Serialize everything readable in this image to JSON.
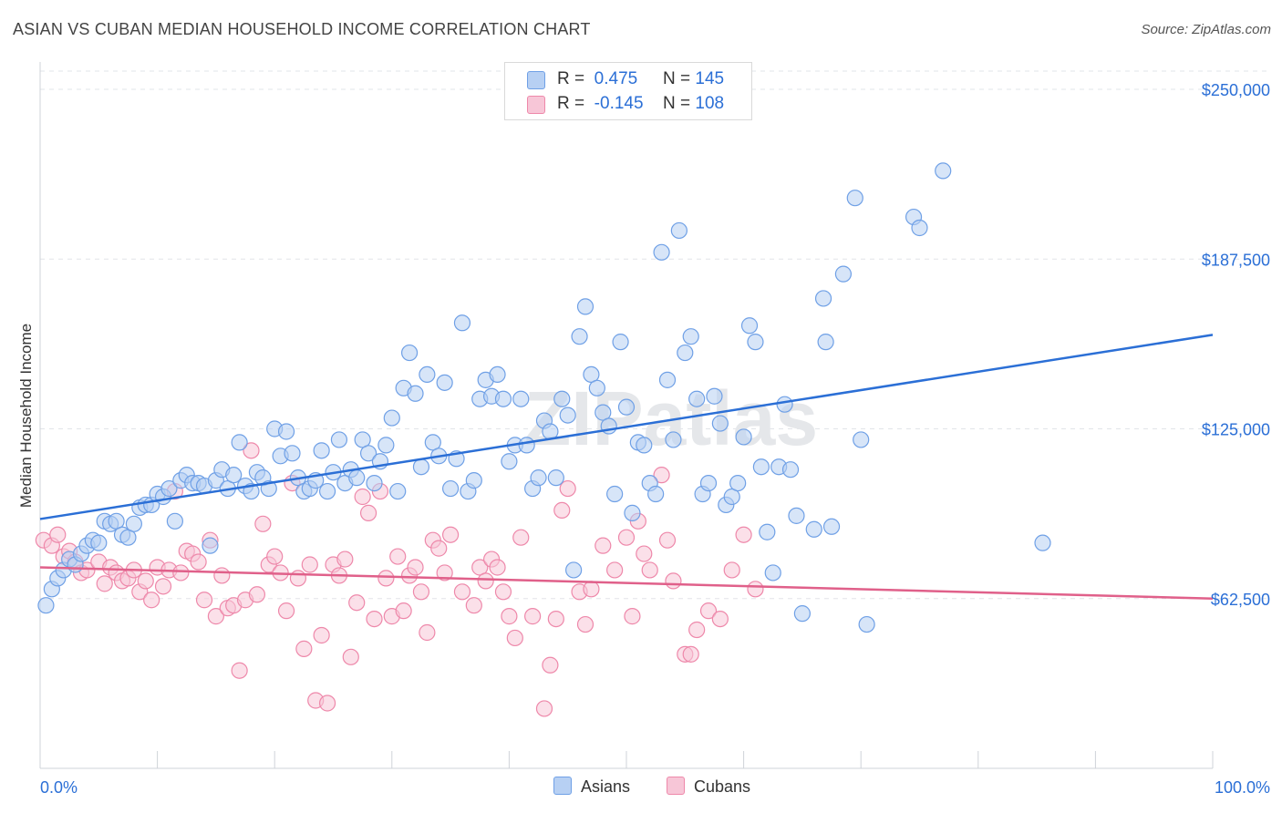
{
  "title": "ASIAN VS CUBAN MEDIAN HOUSEHOLD INCOME CORRELATION CHART",
  "source": "Source: ZipAtlas.com",
  "watermark": "ZIPatlas",
  "legend": {
    "rows": [
      {
        "r_label": "R =",
        "r_value": "0.475",
        "n_label": "N =",
        "n_value": "145"
      },
      {
        "r_label": "R =",
        "r_value": "-0.145",
        "n_label": "N =",
        "n_value": "108"
      }
    ]
  },
  "bottom_legend": [
    "Asians",
    "Cubans"
  ],
  "colors": {
    "asian": "#6fa0e6",
    "asian_fill": "#b7d0f3",
    "cuban": "#ee88aa",
    "cuban_fill": "#f7c6d7",
    "asian_line": "#2b6fd6",
    "cuban_line": "#e0608a",
    "axis_text": "#2b6fd6"
  },
  "chart_data": {
    "type": "scatter",
    "title": "ASIAN VS CUBAN MEDIAN HOUSEHOLD INCOME CORRELATION CHART",
    "xlabel": "",
    "ylabel": "Median Household Income",
    "xlim": [
      0,
      100
    ],
    "ylim": [
      0,
      250000
    ],
    "x_tick_labels": [
      "0.0%",
      "100.0%"
    ],
    "y_ticks": [
      62500,
      125000,
      187500,
      250000
    ],
    "y_tick_labels": [
      "$62,500",
      "$125,000",
      "$187,500",
      "$250,000"
    ],
    "grid": true,
    "legend_position": "top-center",
    "series": [
      {
        "name": "Asians",
        "r": 0.475,
        "n": 145,
        "trend": [
          [
            0,
            91800
          ],
          [
            100,
            159600
          ]
        ],
        "points": [
          [
            0.5,
            60000
          ],
          [
            1,
            66000
          ],
          [
            1.5,
            70000
          ],
          [
            2,
            73000
          ],
          [
            2.5,
            77000
          ],
          [
            3,
            75000
          ],
          [
            3.5,
            79000
          ],
          [
            4,
            82000
          ],
          [
            4.5,
            84000
          ],
          [
            5,
            83000
          ],
          [
            5.5,
            91000
          ],
          [
            6,
            90000
          ],
          [
            6.5,
            91000
          ],
          [
            7,
            86000
          ],
          [
            7.5,
            85000
          ],
          [
            8,
            90000
          ],
          [
            8.5,
            96000
          ],
          [
            9,
            97000
          ],
          [
            9.5,
            97000
          ],
          [
            10,
            101000
          ],
          [
            10.5,
            100000
          ],
          [
            11,
            103000
          ],
          [
            11.5,
            91000
          ],
          [
            12,
            106000
          ],
          [
            12.5,
            108000
          ],
          [
            13,
            105000
          ],
          [
            13.5,
            105000
          ],
          [
            14,
            104000
          ],
          [
            14.5,
            82000
          ],
          [
            15,
            106000
          ],
          [
            15.5,
            110000
          ],
          [
            16,
            103000
          ],
          [
            16.5,
            108000
          ],
          [
            17,
            120000
          ],
          [
            17.5,
            104000
          ],
          [
            18,
            102000
          ],
          [
            18.5,
            109000
          ],
          [
            19,
            107000
          ],
          [
            19.5,
            103000
          ],
          [
            20,
            125000
          ],
          [
            20.5,
            115000
          ],
          [
            21,
            124000
          ],
          [
            21.5,
            116000
          ],
          [
            22,
            107000
          ],
          [
            22.5,
            102000
          ],
          [
            23,
            103000
          ],
          [
            23.5,
            106000
          ],
          [
            24,
            117000
          ],
          [
            24.5,
            102000
          ],
          [
            25,
            109000
          ],
          [
            25.5,
            121000
          ],
          [
            26,
            105000
          ],
          [
            26.5,
            110000
          ],
          [
            27,
            107000
          ],
          [
            27.5,
            121000
          ],
          [
            28,
            116000
          ],
          [
            28.5,
            105000
          ],
          [
            29,
            113000
          ],
          [
            29.5,
            119000
          ],
          [
            30,
            129000
          ],
          [
            30.5,
            102000
          ],
          [
            31,
            140000
          ],
          [
            31.5,
            153000
          ],
          [
            32,
            138000
          ],
          [
            32.5,
            111000
          ],
          [
            33,
            145000
          ],
          [
            33.5,
            120000
          ],
          [
            34,
            115000
          ],
          [
            34.5,
            142000
          ],
          [
            35,
            103000
          ],
          [
            35.5,
            114000
          ],
          [
            36,
            164000
          ],
          [
            36.5,
            102000
          ],
          [
            37,
            106000
          ],
          [
            37.5,
            136000
          ],
          [
            38,
            143000
          ],
          [
            38.5,
            137000
          ],
          [
            39,
            145000
          ],
          [
            39.5,
            136000
          ],
          [
            40,
            113000
          ],
          [
            40.5,
            119000
          ],
          [
            41,
            136000
          ],
          [
            41.5,
            119000
          ],
          [
            42,
            103000
          ],
          [
            42.5,
            107000
          ],
          [
            43,
            128000
          ],
          [
            43.5,
            124000
          ],
          [
            44,
            107000
          ],
          [
            44.5,
            136000
          ],
          [
            45,
            130000
          ],
          [
            45.5,
            73000
          ],
          [
            46,
            159000
          ],
          [
            46.5,
            170000
          ],
          [
            47,
            145000
          ],
          [
            47.5,
            140000
          ],
          [
            48,
            131000
          ],
          [
            48.5,
            126000
          ],
          [
            49,
            101000
          ],
          [
            49.5,
            157000
          ],
          [
            50,
            133000
          ],
          [
            50.5,
            94000
          ],
          [
            51,
            120000
          ],
          [
            51.5,
            119000
          ],
          [
            52,
            105000
          ],
          [
            52.5,
            101000
          ],
          [
            53,
            190000
          ],
          [
            53.5,
            143000
          ],
          [
            54,
            121000
          ],
          [
            54.5,
            198000
          ],
          [
            55,
            153000
          ],
          [
            55.5,
            159000
          ],
          [
            56,
            136000
          ],
          [
            56.5,
            101000
          ],
          [
            57,
            105000
          ],
          [
            57.5,
            137000
          ],
          [
            58,
            127000
          ],
          [
            58.5,
            97000
          ],
          [
            59,
            100000
          ],
          [
            59.5,
            105000
          ],
          [
            60,
            122000
          ],
          [
            60.5,
            163000
          ],
          [
            61,
            157000
          ],
          [
            61.5,
            111000
          ],
          [
            62,
            87000
          ],
          [
            62.5,
            72000
          ],
          [
            63,
            111000
          ],
          [
            63.5,
            134000
          ],
          [
            64,
            110000
          ],
          [
            64.5,
            93000
          ],
          [
            65,
            57000
          ],
          [
            66,
            88000
          ],
          [
            66.8,
            173000
          ],
          [
            67,
            157000
          ],
          [
            67.5,
            89000
          ],
          [
            68.5,
            182000
          ],
          [
            69.5,
            210000
          ],
          [
            70,
            121000
          ],
          [
            70.5,
            53000
          ],
          [
            74.5,
            203000
          ],
          [
            75,
            199000
          ],
          [
            77,
            220000
          ],
          [
            85.5,
            83000
          ]
        ]
      },
      {
        "name": "Cubans",
        "r": -0.145,
        "n": 108,
        "trend": [
          [
            0,
            74000
          ],
          [
            100,
            62500
          ]
        ],
        "points": [
          [
            0.3,
            84000
          ],
          [
            1,
            82000
          ],
          [
            1.5,
            86000
          ],
          [
            2,
            78000
          ],
          [
            2.5,
            80000
          ],
          [
            3,
            76000
          ],
          [
            3.5,
            72000
          ],
          [
            4,
            73000
          ],
          [
            5,
            76000
          ],
          [
            5.5,
            68000
          ],
          [
            6,
            74000
          ],
          [
            6.5,
            72000
          ],
          [
            7,
            69000
          ],
          [
            7.5,
            70000
          ],
          [
            8,
            73000
          ],
          [
            8.5,
            65000
          ],
          [
            9,
            69000
          ],
          [
            9.5,
            62000
          ],
          [
            10,
            74000
          ],
          [
            10.5,
            67000
          ],
          [
            11,
            73000
          ],
          [
            11.5,
            102000
          ],
          [
            12,
            72000
          ],
          [
            12.5,
            80000
          ],
          [
            13,
            79000
          ],
          [
            13.5,
            76000
          ],
          [
            14,
            62000
          ],
          [
            14.5,
            84000
          ],
          [
            15,
            56000
          ],
          [
            15.5,
            71000
          ],
          [
            16,
            59000
          ],
          [
            16.5,
            60000
          ],
          [
            17,
            36000
          ],
          [
            17.5,
            62000
          ],
          [
            18,
            117000
          ],
          [
            18.5,
            64000
          ],
          [
            19,
            90000
          ],
          [
            19.5,
            75000
          ],
          [
            20,
            78000
          ],
          [
            20.5,
            72000
          ],
          [
            21,
            58000
          ],
          [
            21.5,
            105000
          ],
          [
            22,
            70000
          ],
          [
            22.5,
            44000
          ],
          [
            23,
            75000
          ],
          [
            23.5,
            25000
          ],
          [
            24,
            49000
          ],
          [
            24.5,
            24000
          ],
          [
            25,
            75000
          ],
          [
            25.5,
            71000
          ],
          [
            26,
            77000
          ],
          [
            26.5,
            41000
          ],
          [
            27,
            61000
          ],
          [
            27.5,
            100000
          ],
          [
            28,
            94000
          ],
          [
            28.5,
            55000
          ],
          [
            29,
            102000
          ],
          [
            29.5,
            70000
          ],
          [
            30,
            56000
          ],
          [
            30.5,
            78000
          ],
          [
            31,
            58000
          ],
          [
            31.5,
            71000
          ],
          [
            32,
            74000
          ],
          [
            32.5,
            65000
          ],
          [
            33,
            50000
          ],
          [
            33.5,
            84000
          ],
          [
            34,
            81000
          ],
          [
            34.5,
            72000
          ],
          [
            35,
            86000
          ],
          [
            36,
            65000
          ],
          [
            37,
            60000
          ],
          [
            37.5,
            74000
          ],
          [
            38,
            69000
          ],
          [
            38.5,
            77000
          ],
          [
            39,
            74000
          ],
          [
            39.5,
            65000
          ],
          [
            40,
            56000
          ],
          [
            40.5,
            48000
          ],
          [
            41,
            85000
          ],
          [
            42,
            56000
          ],
          [
            43,
            22000
          ],
          [
            43.5,
            38000
          ],
          [
            44,
            55000
          ],
          [
            44.5,
            95000
          ],
          [
            45,
            103000
          ],
          [
            46,
            65000
          ],
          [
            46.5,
            53000
          ],
          [
            47,
            66000
          ],
          [
            48,
            82000
          ],
          [
            49,
            73000
          ],
          [
            50,
            85000
          ],
          [
            50.5,
            56000
          ],
          [
            51,
            91000
          ],
          [
            51.5,
            79000
          ],
          [
            52,
            73000
          ],
          [
            53,
            108000
          ],
          [
            53.5,
            84000
          ],
          [
            54,
            69000
          ],
          [
            55,
            42000
          ],
          [
            55.5,
            42000
          ],
          [
            56,
            51000
          ],
          [
            57,
            58000
          ],
          [
            58,
            55000
          ],
          [
            59,
            73000
          ],
          [
            60,
            86000
          ],
          [
            61,
            66000
          ]
        ]
      }
    ]
  }
}
